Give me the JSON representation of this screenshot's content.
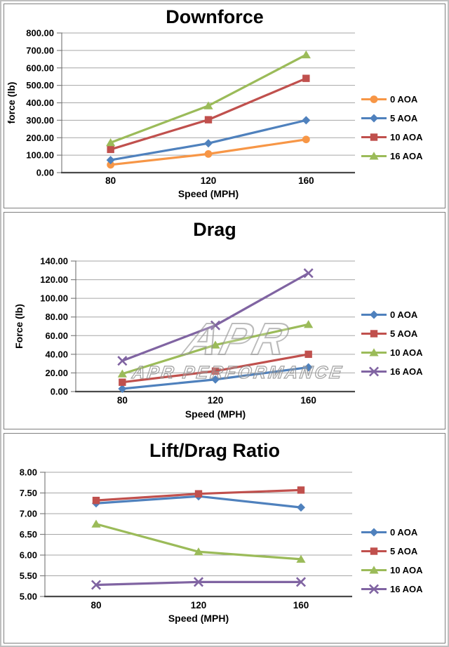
{
  "watermark": {
    "logo": "APR",
    "text": "APR PERFORMANCE"
  },
  "chart_data": [
    {
      "type": "line",
      "title": "Downforce",
      "xlabel": "Speed (MPH)",
      "ylabel": "force (lb)",
      "x": [
        80,
        120,
        160
      ],
      "ylim": [
        0,
        800
      ],
      "ytick_step": 100,
      "grid": true,
      "legend_position": "right",
      "series": [
        {
          "name": "0 AOA",
          "color": "#F79646",
          "marker": "circle",
          "values": [
            45,
            107,
            190
          ]
        },
        {
          "name": "5 AOA",
          "color": "#4F81BD",
          "marker": "diamond",
          "values": [
            72,
            168,
            300
          ]
        },
        {
          "name": "10 AOA",
          "color": "#C0504D",
          "marker": "square",
          "values": [
            133,
            303,
            540
          ]
        },
        {
          "name": "16 AOA",
          "color": "#9BBB59",
          "marker": "triangle",
          "values": [
            172,
            383,
            675
          ]
        }
      ]
    },
    {
      "type": "line",
      "title": "Drag",
      "xlabel": "Speed (MPH)",
      "ylabel": "Force (lb)",
      "x": [
        80,
        120,
        160
      ],
      "ylim": [
        0,
        140
      ],
      "ytick_step": 20,
      "grid": true,
      "legend_position": "right",
      "series": [
        {
          "name": "0 AOA",
          "color": "#4F81BD",
          "marker": "diamond",
          "values": [
            3,
            13,
            26
          ]
        },
        {
          "name": "5 AOA",
          "color": "#C0504D",
          "marker": "square",
          "values": [
            10,
            22,
            40
          ]
        },
        {
          "name": "10 AOA",
          "color": "#9BBB59",
          "marker": "triangle",
          "values": [
            19,
            50,
            72
          ]
        },
        {
          "name": "16 AOA",
          "color": "#8064A2",
          "marker": "x",
          "values": [
            33,
            71,
            127
          ]
        }
      ]
    },
    {
      "type": "line",
      "title": "Lift/Drag Ratio",
      "xlabel": "Speed (MPH)",
      "ylabel": "",
      "x": [
        80,
        120,
        160
      ],
      "ylim": [
        5,
        8
      ],
      "ytick_step": 0.5,
      "grid": true,
      "legend_position": "right",
      "series": [
        {
          "name": "0 AOA",
          "color": "#4F81BD",
          "marker": "diamond",
          "values": [
            7.25,
            7.42,
            7.15
          ]
        },
        {
          "name": "5 AOA",
          "color": "#C0504D",
          "marker": "square",
          "values": [
            7.32,
            7.48,
            7.57
          ]
        },
        {
          "name": "10 AOA",
          "color": "#9BBB59",
          "marker": "triangle",
          "values": [
            6.75,
            6.08,
            5.9
          ]
        },
        {
          "name": "16 AOA",
          "color": "#8064A2",
          "marker": "x",
          "values": [
            5.28,
            5.35,
            5.35
          ]
        }
      ]
    }
  ]
}
